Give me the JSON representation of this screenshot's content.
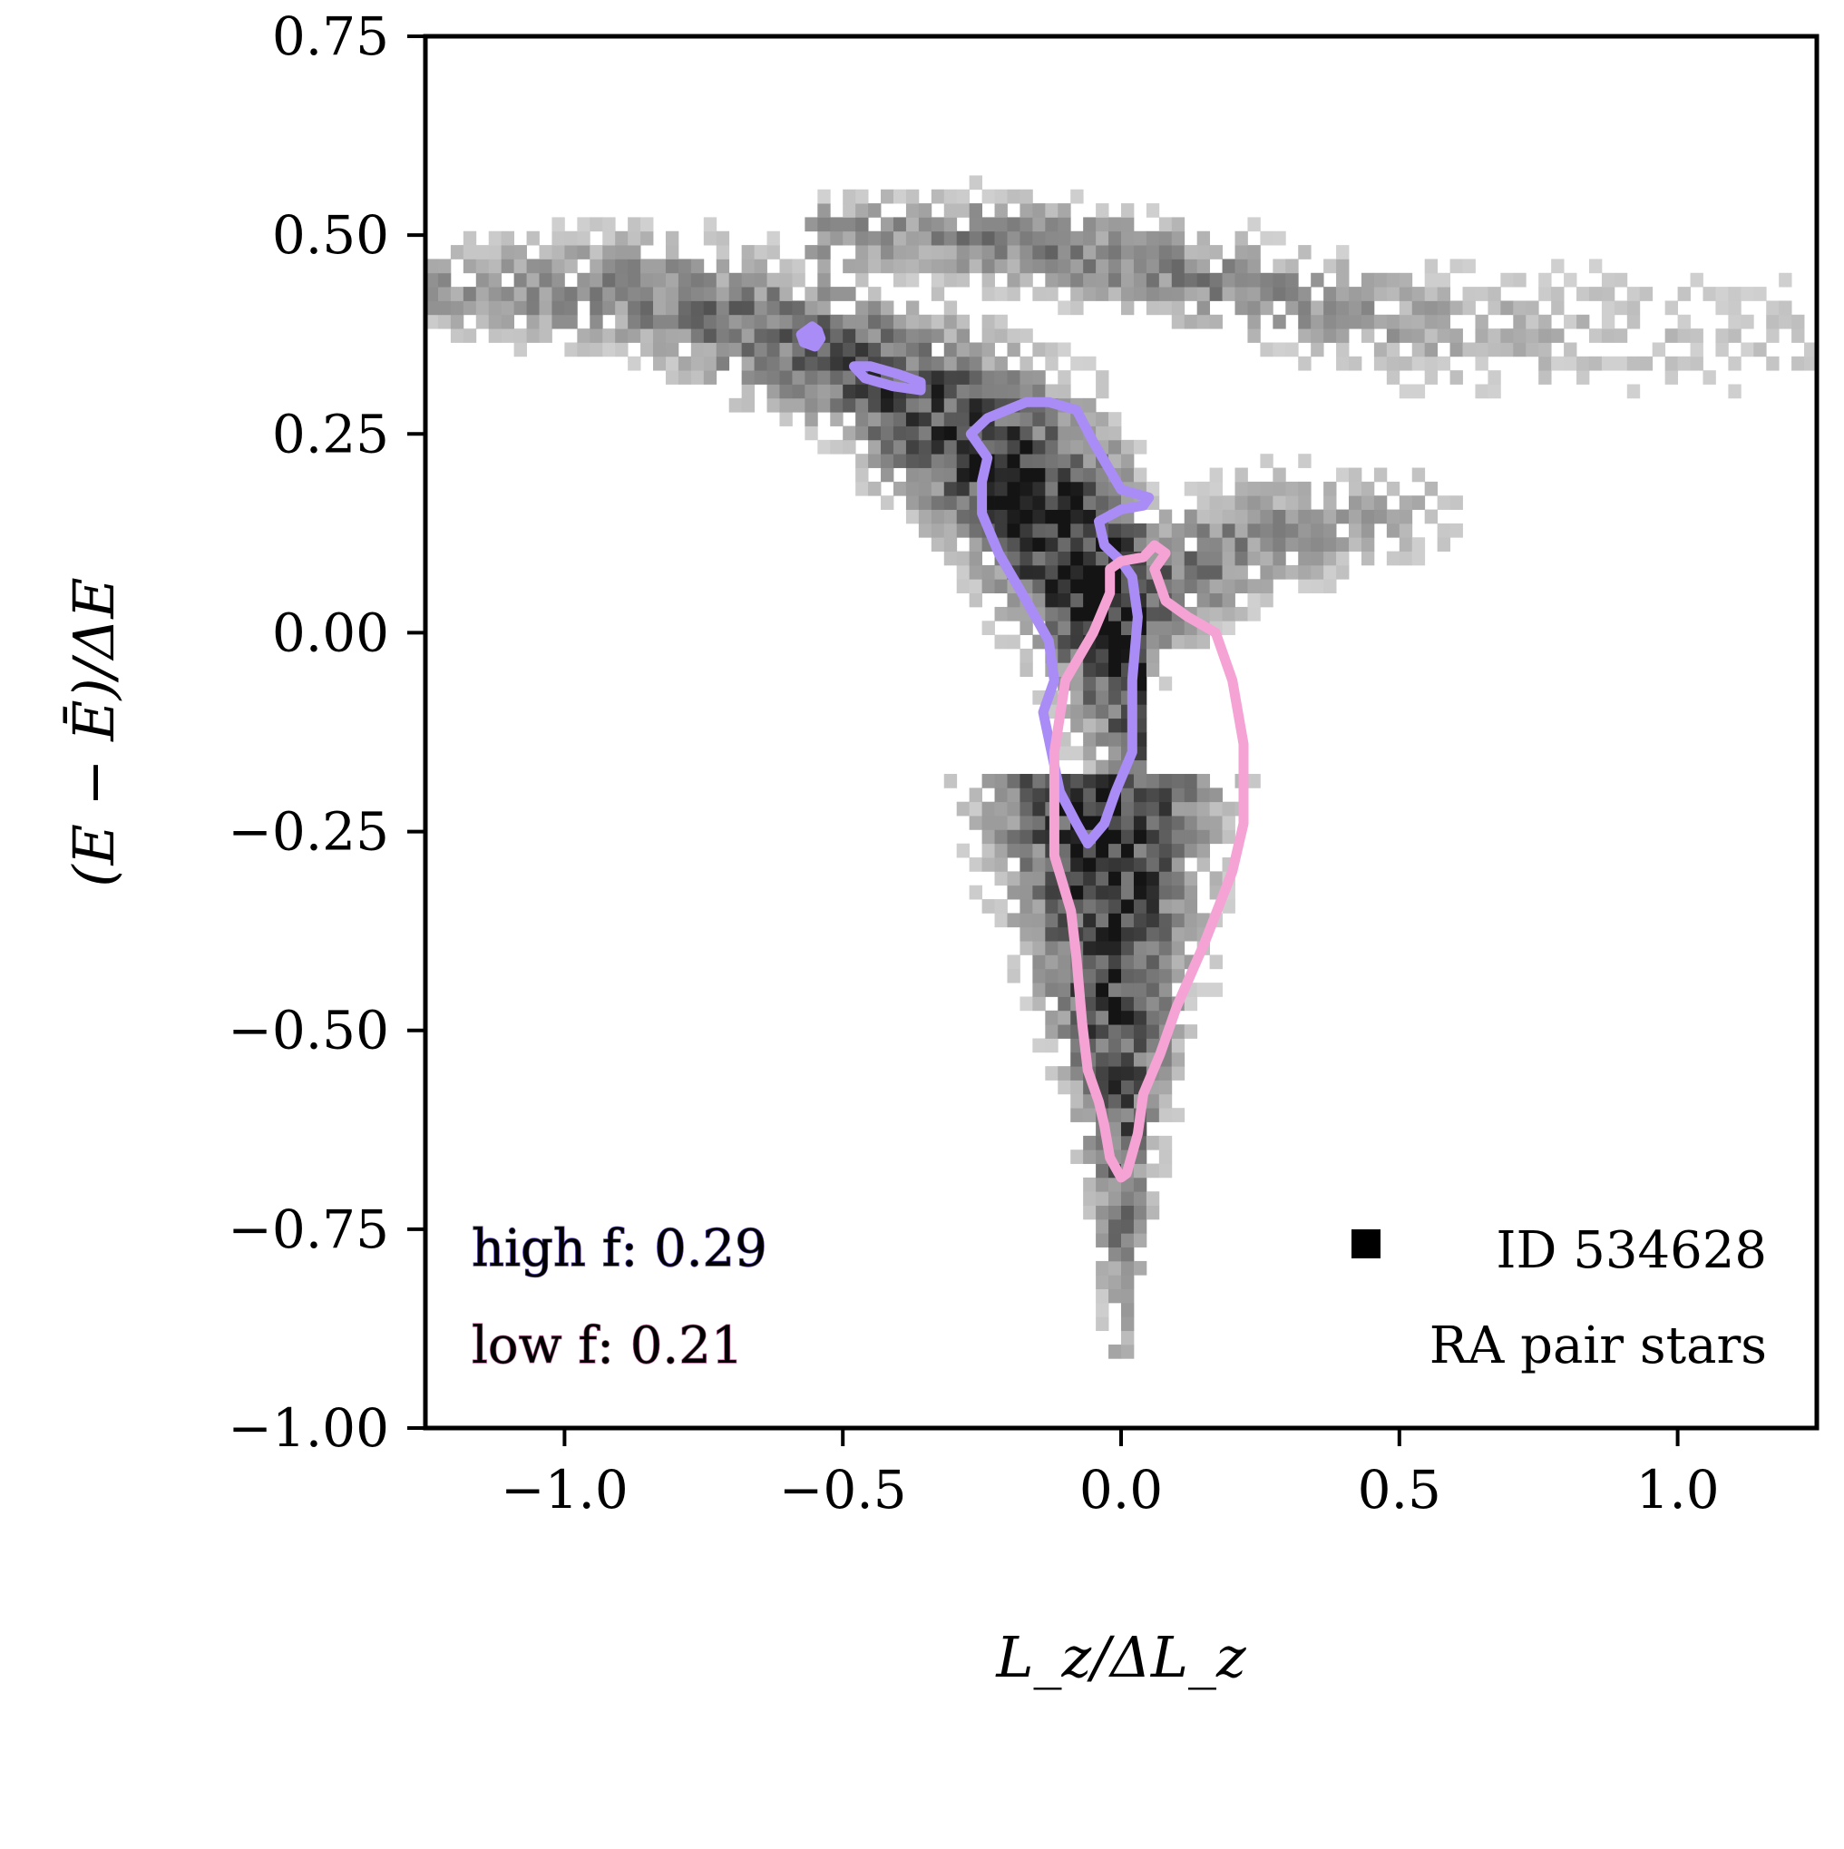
{
  "chart_data": {
    "type": "heatmap",
    "title": "",
    "xlabel": "L_z/ΔL_z",
    "ylabel": "(E − Ē)/ΔE",
    "xlim": [
      -1.25,
      1.25
    ],
    "ylim": [
      -1.0,
      0.75
    ],
    "xticks": [
      -1.0,
      -0.5,
      0.0,
      0.5,
      1.0
    ],
    "xtick_labels": [
      "−1.0",
      "−0.5",
      "0.0",
      "0.5",
      "1.0"
    ],
    "yticks": [
      0.75,
      0.5,
      0.25,
      0.0,
      -0.25,
      -0.5,
      -0.75,
      -1.0
    ],
    "ytick_labels": [
      "0.75",
      "0.50",
      "0.25",
      "0.00",
      "−0.25",
      "−0.50",
      "−0.75",
      "−1.00"
    ],
    "grid": false,
    "colormap": "greys",
    "density_shape": {
      "description": "2D histogram of pair stars; wide arm at high energy, narrowing tail toward low energy",
      "core_center": [
        -0.05,
        0.0
      ],
      "branches": [
        {
          "x": [
            -1.25,
            -0.9,
            -0.55,
            -0.3,
            -0.15,
            0.0,
            0.02
          ],
          "y": [
            0.43,
            0.43,
            0.36,
            0.25,
            0.15,
            0.02,
            -0.02
          ],
          "width": [
            0.06,
            0.08,
            0.1,
            0.13,
            0.16,
            0.2,
            0.18
          ],
          "weight": [
            0.35,
            0.45,
            0.6,
            0.8,
            0.95,
            1.0,
            1.0
          ]
        },
        {
          "x": [
            -0.55,
            -0.3,
            0.0,
            0.3,
            0.6,
            0.9,
            1.25
          ],
          "y": [
            0.5,
            0.5,
            0.47,
            0.42,
            0.38,
            0.38,
            0.37
          ],
          "width": [
            0.05,
            0.06,
            0.06,
            0.07,
            0.08,
            0.09,
            0.1
          ],
          "weight": [
            0.4,
            0.45,
            0.5,
            0.4,
            0.3,
            0.2,
            0.15
          ]
        },
        {
          "x": [
            0.05,
            0.25,
            0.45,
            0.6
          ],
          "y": [
            0.05,
            0.12,
            0.15,
            0.15
          ],
          "width": [
            0.1,
            0.08,
            0.07,
            0.06
          ],
          "weight": [
            0.6,
            0.45,
            0.3,
            0.2
          ]
        },
        {
          "x": [
            -0.04,
            -0.02,
            0.0,
            0.0,
            0.0
          ],
          "y": [
            -0.2,
            -0.4,
            -0.6,
            -0.75,
            -0.92
          ],
          "width": [
            0.2,
            0.14,
            0.08,
            0.05,
            0.03
          ],
          "weight": [
            0.9,
            0.85,
            0.7,
            0.5,
            0.25
          ]
        }
      ]
    },
    "series": [
      {
        "name": "high f",
        "type": "contour",
        "color": "#a98cf5",
        "paths": [
          {
            "filled": true,
            "x": [
              -0.555,
              -0.545,
              -0.54,
              -0.55,
              -0.57,
              -0.575,
              -0.555
            ],
            "y": [
              0.385,
              0.38,
              0.37,
              0.36,
              0.365,
              0.375,
              0.385
            ]
          },
          {
            "filled": false,
            "x": [
              -0.48,
              -0.45,
              -0.4,
              -0.36,
              -0.36,
              -0.41,
              -0.46,
              -0.48
            ],
            "y": [
              0.335,
              0.335,
              0.325,
              0.315,
              0.305,
              0.31,
              0.32,
              0.335
            ]
          },
          {
            "filled": false,
            "x": [
              -0.27,
              -0.24,
              -0.17,
              -0.13,
              -0.08,
              -0.05,
              0.0,
              0.05,
              0.04,
              0.0,
              -0.04,
              -0.03,
              0.0,
              0.02,
              0.03,
              0.02,
              0.02,
              -0.01,
              -0.03,
              -0.06,
              -0.08,
              -0.11,
              -0.14,
              -0.12,
              -0.13,
              -0.17,
              -0.22,
              -0.25,
              -0.25,
              -0.24,
              -0.27
            ],
            "y": [
              0.25,
              0.27,
              0.29,
              0.29,
              0.28,
              0.24,
              0.18,
              0.17,
              0.16,
              0.155,
              0.14,
              0.11,
              0.09,
              0.07,
              0.02,
              -0.06,
              -0.15,
              -0.2,
              -0.24,
              -0.265,
              -0.24,
              -0.2,
              -0.1,
              -0.06,
              -0.01,
              0.04,
              0.1,
              0.15,
              0.19,
              0.22,
              0.25
            ]
          }
        ]
      },
      {
        "name": "low f",
        "type": "contour",
        "color": "#f5a2d4",
        "paths": [
          {
            "filled": false,
            "x": [
              -0.02,
              0.0,
              0.04,
              0.06,
              0.08,
              0.06,
              0.08,
              0.12,
              0.17,
              0.2,
              0.22,
              0.22,
              0.2,
              0.15,
              0.1,
              0.07,
              0.04,
              0.03,
              0.01,
              0.0,
              -0.02,
              -0.03,
              -0.04,
              -0.06,
              -0.07,
              -0.08,
              -0.09,
              -0.12,
              -0.12,
              -0.1,
              -0.05,
              -0.02,
              -0.02
            ],
            "y": [
              0.08,
              0.09,
              0.095,
              0.11,
              0.1,
              0.08,
              0.04,
              0.02,
              0.0,
              -0.06,
              -0.14,
              -0.24,
              -0.3,
              -0.39,
              -0.47,
              -0.53,
              -0.58,
              -0.63,
              -0.68,
              -0.685,
              -0.66,
              -0.62,
              -0.59,
              -0.55,
              -0.49,
              -0.41,
              -0.35,
              -0.28,
              -0.15,
              -0.06,
              0.0,
              0.05,
              0.08
            ]
          }
        ]
      }
    ],
    "legend": {
      "placement": "bottom-left",
      "entries": [
        {
          "label": "high f",
          "value": "0.29",
          "color": "#a98cf5"
        },
        {
          "label": "low f",
          "value": "0.21",
          "color": "#f5a2d4"
        }
      ]
    },
    "annotation": {
      "placement": "bottom-right",
      "id_line": "ID 534628",
      "subtitle": "RA pair stars",
      "marker": "square"
    }
  }
}
